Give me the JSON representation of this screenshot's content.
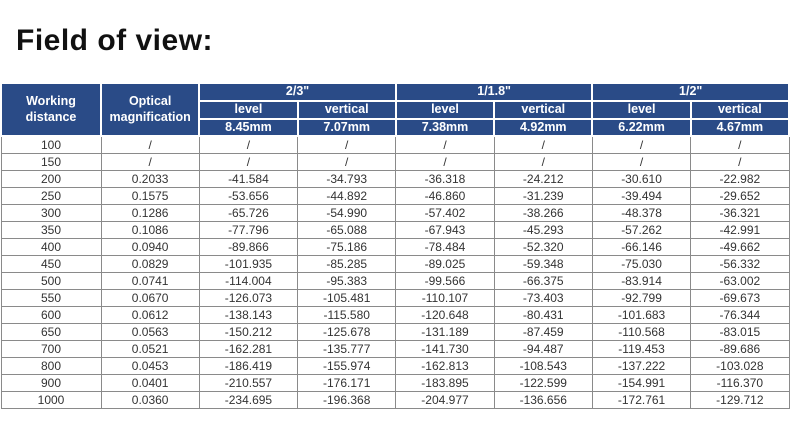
{
  "page": {
    "title": "Field of view:"
  },
  "colors": {
    "header_bg": "#2a4b87",
    "header_text": "#ffffff",
    "body_text": "#333333",
    "grid": "#8a8a8a"
  },
  "chart_data": {
    "type": "table",
    "title": "Field of view:",
    "columns": [
      "Working distance",
      "Optical magnification",
      "2/3\" level (8.45mm)",
      "2/3\" vertical (7.07mm)",
      "1/1.8\" level (7.38mm)",
      "1/1.8\" vertical (4.92mm)",
      "1/2\" level (6.22mm)",
      "1/2\" vertical (4.67mm)"
    ]
  },
  "table": {
    "header": {
      "working_distance": "Working distance",
      "optical_magnification": "Optical magnification",
      "groups": [
        {
          "size": "2/3\"",
          "sub": [
            "level",
            "vertical"
          ],
          "mm": [
            "8.45mm",
            "7.07mm"
          ]
        },
        {
          "size": "1/1.8\"",
          "sub": [
            "level",
            "vertical"
          ],
          "mm": [
            "7.38mm",
            "4.92mm"
          ]
        },
        {
          "size": "1/2\"",
          "sub": [
            "level",
            "vertical"
          ],
          "mm": [
            "6.22mm",
            "4.67mm"
          ]
        }
      ]
    },
    "rows": [
      [
        "100",
        "/",
        "/",
        "/",
        "/",
        "/",
        "/",
        "/"
      ],
      [
        "150",
        "/",
        "/",
        "/",
        "/",
        "/",
        "/",
        "/"
      ],
      [
        "200",
        "0.2033",
        "-41.584",
        "-34.793",
        "-36.318",
        "-24.212",
        "-30.610",
        "-22.982"
      ],
      [
        "250",
        "0.1575",
        "-53.656",
        "-44.892",
        "-46.860",
        "-31.239",
        "-39.494",
        "-29.652"
      ],
      [
        "300",
        "0.1286",
        "-65.726",
        "-54.990",
        "-57.402",
        "-38.266",
        "-48.378",
        "-36.321"
      ],
      [
        "350",
        "0.1086",
        "-77.796",
        "-65.088",
        "-67.943",
        "-45.293",
        "-57.262",
        "-42.991"
      ],
      [
        "400",
        "0.0940",
        "-89.866",
        "-75.186",
        "-78.484",
        "-52.320",
        "-66.146",
        "-49.662"
      ],
      [
        "450",
        "0.0829",
        "-101.935",
        "-85.285",
        "-89.025",
        "-59.348",
        "-75.030",
        "-56.332"
      ],
      [
        "500",
        "0.0741",
        "-114.004",
        "-95.383",
        "-99.566",
        "-66.375",
        "-83.914",
        "-63.002"
      ],
      [
        "550",
        "0.0670",
        "-126.073",
        "-105.481",
        "-110.107",
        "-73.403",
        "-92.799",
        "-69.673"
      ],
      [
        "600",
        "0.0612",
        "-138.143",
        "-115.580",
        "-120.648",
        "-80.431",
        "-101.683",
        "-76.344"
      ],
      [
        "650",
        "0.0563",
        "-150.212",
        "-125.678",
        "-131.189",
        "-87.459",
        "-110.568",
        "-83.015"
      ],
      [
        "700",
        "0.0521",
        "-162.281",
        "-135.777",
        "-141.730",
        "-94.487",
        "-119.453",
        "-89.686"
      ],
      [
        "800",
        "0.0453",
        "-186.419",
        "-155.974",
        "-162.813",
        "-108.543",
        "-137.222",
        "-103.028"
      ],
      [
        "900",
        "0.0401",
        "-210.557",
        "-176.171",
        "-183.895",
        "-122.599",
        "-154.991",
        "-116.370"
      ],
      [
        "1000",
        "0.0360",
        "-234.695",
        "-196.368",
        "-204.977",
        "-136.656",
        "-172.761",
        "-129.712"
      ]
    ]
  }
}
